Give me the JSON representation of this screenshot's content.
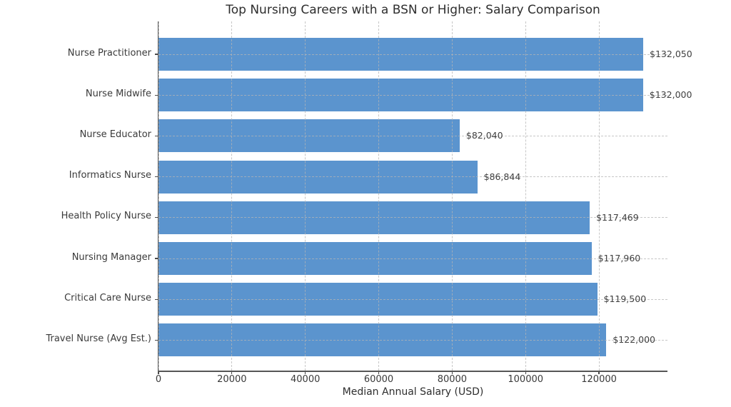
{
  "chart_data": {
    "type": "bar",
    "orientation": "horizontal",
    "title": "Top Nursing Careers with a BSN or Higher: Salary Comparison",
    "xlabel": "Median Annual Salary (USD)",
    "categories": [
      "Nurse Practitioner",
      "Nurse Midwife",
      "Nurse Educator",
      "Informatics Nurse",
      "Health Policy Nurse",
      "Nursing Manager",
      "Critical Care Nurse",
      "Travel Nurse (Avg Est.)"
    ],
    "values": [
      132050,
      132000,
      82040,
      86844,
      117469,
      117960,
      119500,
      122000
    ],
    "value_labels": [
      "$132,050",
      "$132,000",
      "$82,040",
      "$86,844",
      "$117,469",
      "$117,960",
      "$119,500",
      "$122,000"
    ],
    "xticks": [
      0,
      20000,
      40000,
      60000,
      80000,
      100000,
      120000
    ],
    "xtick_labels": [
      "0",
      "20000",
      "40000",
      "60000",
      "80000",
      "100000",
      "120000"
    ],
    "xlim": [
      0,
      138653
    ],
    "grid": "dashed",
    "legend": "none",
    "bar_color": "#5b94ce",
    "grid_color": "#b4b4b4",
    "spine_color": "#565656",
    "text_color": "#3a3a3a"
  }
}
